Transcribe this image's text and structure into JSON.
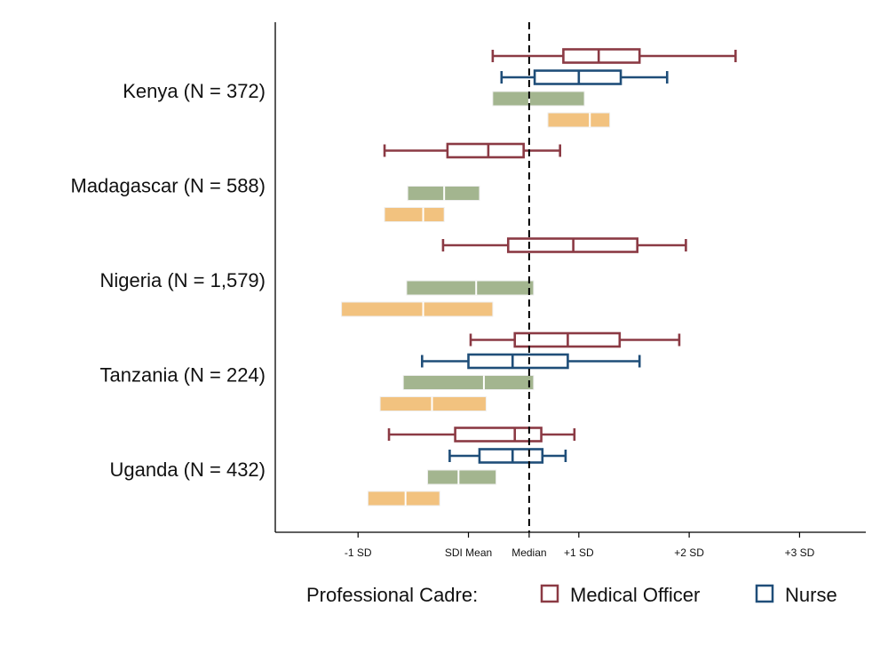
{
  "chart_data": {
    "type": "boxplot",
    "orientation": "horizontal",
    "xlim": [
      -2.3,
      3.05
    ],
    "median_line": 0,
    "x_ticks": [
      {
        "value": -1.55,
        "label": "-1 SD"
      },
      {
        "value": -0.55,
        "label": "SDI Mean"
      },
      {
        "value": 0,
        "label": "Median"
      },
      {
        "value": 0.45,
        "label": "+1 SD"
      },
      {
        "value": 1.45,
        "label": "+2 SD"
      },
      {
        "value": 2.45,
        "label": "+3 SD"
      }
    ],
    "cadres": [
      {
        "key": "medical_officer",
        "name": "Medical Officer",
        "color": "#8b3a44",
        "style": "whisker-box"
      },
      {
        "key": "nurse",
        "name": "Nurse",
        "color": "#1f4e79",
        "style": "whisker-box"
      },
      {
        "key": "green",
        "color": "#a3b58f",
        "style": "filled-box"
      },
      {
        "key": "orange",
        "color": "#f2c27f",
        "style": "filled-box"
      }
    ],
    "countries": [
      {
        "label": "Kenya (N = 372)",
        "medical_officer": {
          "min": -0.33,
          "q1": 0.31,
          "median": 0.63,
          "q3": 1.0,
          "max": 1.87
        },
        "nurse": {
          "min": -0.25,
          "q1": 0.05,
          "median": 0.45,
          "q3": 0.83,
          "max": 1.25
        },
        "green": {
          "q1": -0.33,
          "median": 0.0,
          "q3": 0.5
        },
        "orange": {
          "q1": 0.17,
          "median": 0.55,
          "q3": 0.73
        }
      },
      {
        "label": "Madagascar (N = 588)",
        "medical_officer": {
          "min": -1.31,
          "q1": -0.74,
          "median": -0.37,
          "q3": -0.05,
          "max": 0.28
        },
        "green": {
          "q1": -1.1,
          "median": -0.77,
          "q3": -0.45
        },
        "orange": {
          "q1": -1.31,
          "median": -0.96,
          "q3": -0.77
        }
      },
      {
        "label": "Nigeria (N = 1,579)",
        "medical_officer": {
          "min": -0.78,
          "q1": -0.19,
          "median": 0.4,
          "q3": 0.98,
          "max": 1.42
        },
        "green": {
          "q1": -1.11,
          "median": -0.48,
          "q3": 0.04
        },
        "orange": {
          "q1": -1.7,
          "median": -0.96,
          "q3": -0.33
        }
      },
      {
        "label": "Tanzania (N = 224)",
        "medical_officer": {
          "min": -0.53,
          "q1": -0.13,
          "median": 0.35,
          "q3": 0.82,
          "max": 1.36
        },
        "nurse": {
          "min": -0.97,
          "q1": -0.55,
          "median": -0.15,
          "q3": 0.35,
          "max": 1.0
        },
        "green": {
          "q1": -1.14,
          "median": -0.41,
          "q3": 0.04
        },
        "orange": {
          "q1": -1.35,
          "median": -0.88,
          "q3": -0.39
        }
      },
      {
        "label": "Uganda (N = 432)",
        "medical_officer": {
          "min": -1.27,
          "q1": -0.67,
          "median": -0.13,
          "q3": 0.11,
          "max": 0.41
        },
        "nurse": {
          "min": -0.72,
          "q1": -0.45,
          "median": -0.15,
          "q3": 0.12,
          "max": 0.33
        },
        "green": {
          "q1": -0.92,
          "median": -0.64,
          "q3": -0.3
        },
        "orange": {
          "q1": -1.46,
          "median": -1.12,
          "q3": -0.81
        }
      }
    ],
    "legend": {
      "title": "Professional Cadre:",
      "entries": [
        "Medical Officer",
        "Nurse"
      ],
      "placement": "bottom"
    },
    "grid": false
  }
}
